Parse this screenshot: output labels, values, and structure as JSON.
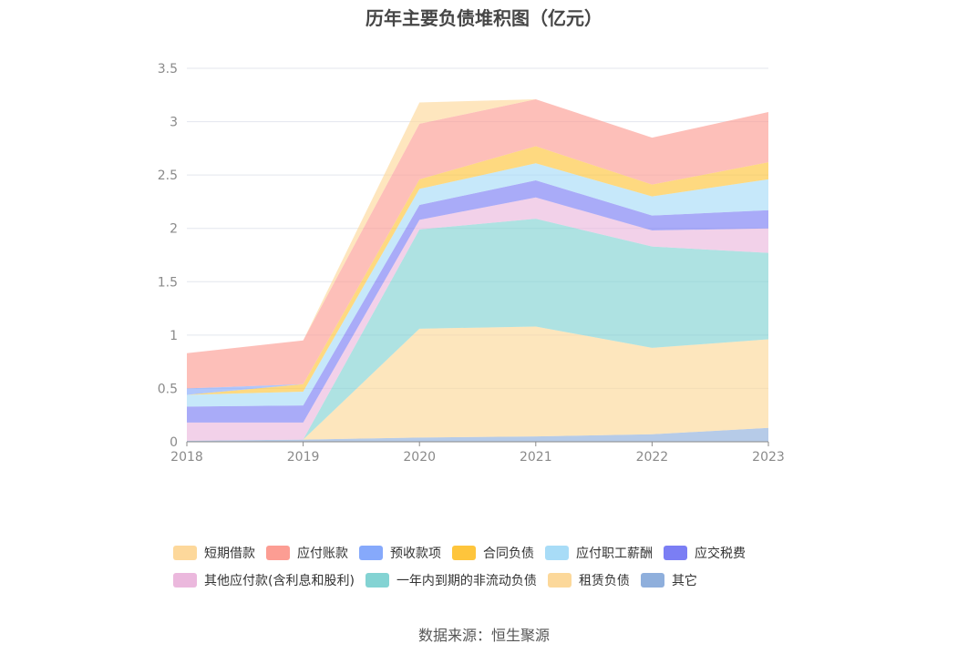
{
  "chart_data": {
    "type": "area",
    "title": "历年主要负债堆积图（亿元）",
    "xlabel": "",
    "ylabel": "",
    "x": [
      "2018",
      "2019",
      "2020",
      "2021",
      "2022",
      "2023"
    ],
    "ylim": [
      0,
      3.5
    ],
    "yticks": [
      "0",
      "0.5",
      "1",
      "1.5",
      "2",
      "2.5",
      "3",
      "3.5"
    ],
    "stacked": true,
    "grid": true,
    "legend_position": "bottom",
    "series": [
      {
        "name": "其它",
        "color": "#8fafdc",
        "values": [
          0.01,
          0.02,
          0.04,
          0.05,
          0.07,
          0.13
        ]
      },
      {
        "name": "租赁负债",
        "color": "#fcd89a",
        "values": [
          0.0,
          0.0,
          1.02,
          1.03,
          0.81,
          0.83
        ]
      },
      {
        "name": "一年内到期的非流动负债",
        "color": "#83d3d3",
        "values": [
          0.0,
          0.0,
          0.93,
          1.01,
          0.95,
          0.81
        ]
      },
      {
        "name": "其他应付款(含利息和股利)",
        "color": "#ebb8dd",
        "values": [
          0.17,
          0.16,
          0.09,
          0.2,
          0.15,
          0.23
        ]
      },
      {
        "name": "应交税费",
        "color": "#7b7ef4",
        "values": [
          0.15,
          0.16,
          0.14,
          0.16,
          0.14,
          0.17
        ]
      },
      {
        "name": "应付职工薪酬",
        "color": "#a8dcf7",
        "values": [
          0.11,
          0.13,
          0.15,
          0.16,
          0.18,
          0.29
        ]
      },
      {
        "name": "合同负债",
        "color": "#fec53c",
        "values": [
          0.0,
          0.07,
          0.09,
          0.16,
          0.11,
          0.16
        ]
      },
      {
        "name": "预收款项",
        "color": "#86a9fb",
        "values": [
          0.06,
          0.0,
          0.0,
          0.0,
          0.0,
          0.0
        ]
      },
      {
        "name": "应付账款",
        "color": "#fc9d93",
        "values": [
          0.33,
          0.41,
          0.52,
          0.44,
          0.44,
          0.47
        ]
      },
      {
        "name": "短期借款",
        "color": "#fdd89b",
        "values": [
          0.0,
          0.0,
          0.2,
          0.0,
          0.0,
          0.0
        ]
      }
    ],
    "legend_order": [
      "短期借款",
      "应付账款",
      "预收款项",
      "合同负债",
      "应付职工薪酬",
      "应交税费",
      "其他应付款(含利息和股利)",
      "一年内到期的非流动负债",
      "租赁负债",
      "其它"
    ]
  },
  "source": "数据来源：恒生聚源"
}
